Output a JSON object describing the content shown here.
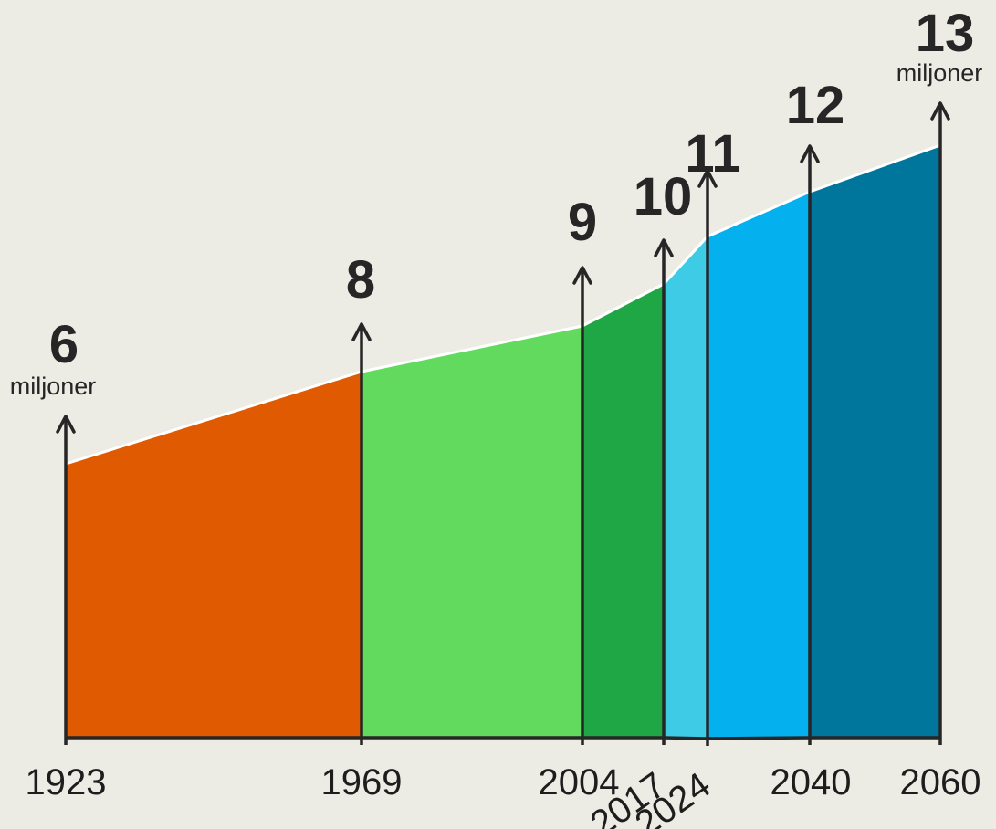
{
  "chart_data": {
    "type": "area",
    "x": [
      1923,
      1969,
      2004,
      2017,
      2024,
      2040,
      2060
    ],
    "x_labels": [
      "1923",
      "1969",
      "2004",
      "2017",
      "2024",
      "2040",
      "2060"
    ],
    "values_millions": [
      6,
      8,
      9,
      10,
      11,
      12,
      13
    ],
    "value_labels": [
      "6",
      "8",
      "9",
      "10",
      "11",
      "12",
      "13"
    ],
    "unit_label": "miljoner",
    "segment_colors": [
      "#df5a00",
      "#62da5e",
      "#20a745",
      "#3dcbe6",
      "#04b1ee",
      "#00769d"
    ],
    "marker_color": "#262626",
    "outline_color": "#ffffff"
  }
}
